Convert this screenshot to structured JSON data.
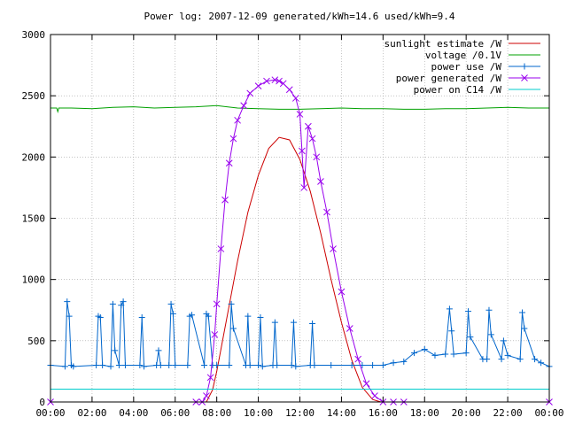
{
  "chart_data": {
    "type": "line",
    "title": "Power log: 2007-12-09 generated/kWh=14.6 used/kWh=9.4",
    "xlabel": "",
    "ylabel": "",
    "xlim": [
      0,
      24
    ],
    "ylim": [
      0,
      3000
    ],
    "grid": true,
    "legend_position": "top-right",
    "x_ticks": [
      {
        "value": 0,
        "label": "00:00"
      },
      {
        "value": 2,
        "label": "02:00"
      },
      {
        "value": 4,
        "label": "04:00"
      },
      {
        "value": 6,
        "label": "06:00"
      },
      {
        "value": 8,
        "label": "08:00"
      },
      {
        "value": 10,
        "label": "10:00"
      },
      {
        "value": 12,
        "label": "12:00"
      },
      {
        "value": 14,
        "label": "14:00"
      },
      {
        "value": 16,
        "label": "16:00"
      },
      {
        "value": 18,
        "label": "18:00"
      },
      {
        "value": 20,
        "label": "20:00"
      },
      {
        "value": 22,
        "label": "22:00"
      },
      {
        "value": 24,
        "label": "00:00"
      }
    ],
    "y_ticks": [
      0,
      500,
      1000,
      1500,
      2000,
      2500,
      3000
    ],
    "series": [
      {
        "name": "sunlight estimate /W",
        "color": "#cc0000",
        "marker": "none",
        "x": [
          7.5,
          7.8,
          8.0,
          8.5,
          9.0,
          9.5,
          10.0,
          10.5,
          11.0,
          11.5,
          12.0,
          12.5,
          13.0,
          13.5,
          14.0,
          14.5,
          15.0,
          15.5,
          15.9
        ],
        "y": [
          0,
          100,
          250,
          700,
          1150,
          1550,
          1850,
          2070,
          2160,
          2140,
          1980,
          1720,
          1380,
          1000,
          650,
          340,
          120,
          20,
          0
        ]
      },
      {
        "name": "voltage /0.1V",
        "color": "#00a000",
        "marker": "none",
        "x": [
          0,
          0.3,
          0.35,
          0.4,
          1,
          2,
          3,
          4,
          5,
          6,
          7,
          8,
          9,
          10,
          11,
          12,
          13,
          14,
          15,
          16,
          17,
          18,
          19,
          20,
          21,
          22,
          23,
          24
        ],
        "y": [
          2400,
          2400,
          2370,
          2400,
          2400,
          2395,
          2405,
          2410,
          2400,
          2405,
          2410,
          2420,
          2400,
          2395,
          2390,
          2390,
          2395,
          2400,
          2395,
          2395,
          2390,
          2390,
          2395,
          2395,
          2400,
          2405,
          2400,
          2400
        ]
      },
      {
        "name": "power use /W",
        "color": "#0066cc",
        "marker": "plus",
        "x": [
          0,
          0.7,
          0.8,
          0.9,
          1.0,
          1.1,
          2.2,
          2.3,
          2.4,
          2.5,
          2.9,
          3.0,
          3.1,
          3.3,
          3.4,
          3.5,
          3.6,
          4.3,
          4.4,
          4.5,
          5.1,
          5.2,
          5.3,
          5.7,
          5.8,
          5.9,
          6.0,
          6.6,
          6.7,
          6.8,
          7.4,
          7.5,
          7.6,
          7.8,
          8.0,
          8.6,
          8.7,
          8.8,
          9.4,
          9.5,
          9.6,
          10.0,
          10.1,
          10.2,
          10.7,
          10.8,
          10.9,
          11.6,
          11.7,
          11.8,
          12.5,
          12.6,
          12.7,
          13.5,
          14.5,
          15.0,
          15.5,
          16.0,
          16.5,
          17.0,
          17.5,
          18.0,
          18.5,
          19.0,
          19.2,
          19.3,
          19.4,
          20.0,
          20.1,
          20.2,
          20.8,
          21.0,
          21.1,
          21.2,
          21.7,
          21.8,
          22.0,
          22.6,
          22.7,
          22.8,
          23.3,
          23.6,
          24.0
        ],
        "y": [
          300,
          290,
          820,
          700,
          300,
          290,
          300,
          700,
          690,
          300,
          290,
          800,
          420,
          300,
          790,
          820,
          300,
          300,
          690,
          290,
          300,
          420,
          300,
          300,
          800,
          720,
          300,
          300,
          700,
          710,
          300,
          720,
          700,
          300,
          300,
          300,
          800,
          600,
          300,
          700,
          300,
          300,
          690,
          290,
          300,
          650,
          300,
          300,
          650,
          290,
          300,
          640,
          300,
          300,
          300,
          300,
          300,
          300,
          320,
          330,
          400,
          430,
          380,
          390,
          760,
          580,
          390,
          400,
          740,
          530,
          350,
          350,
          750,
          550,
          350,
          500,
          380,
          350,
          730,
          600,
          350,
          320,
          290
        ]
      },
      {
        "name": "power generated /W",
        "color": "#9900ee",
        "marker": "x",
        "x": [
          0,
          7.0,
          7.3,
          7.5,
          7.7,
          7.9,
          8.0,
          8.2,
          8.4,
          8.6,
          8.8,
          9.0,
          9.3,
          9.6,
          10.0,
          10.4,
          10.8,
          11.0,
          11.2,
          11.5,
          11.8,
          12.0,
          12.1,
          12.2,
          12.4,
          12.6,
          12.8,
          13.0,
          13.3,
          13.6,
          14.0,
          14.4,
          14.8,
          15.2,
          15.6,
          16.0,
          16.5,
          17.0,
          24.0
        ],
        "y": [
          0,
          0,
          0,
          50,
          200,
          550,
          800,
          1250,
          1650,
          1950,
          2150,
          2300,
          2420,
          2520,
          2580,
          2620,
          2630,
          2620,
          2600,
          2550,
          2480,
          2350,
          2050,
          1750,
          2250,
          2150,
          2000,
          1800,
          1550,
          1250,
          900,
          600,
          350,
          150,
          50,
          0,
          0,
          0,
          0
        ]
      },
      {
        "name": "power on C14 /W",
        "color": "#00cccc",
        "marker": "none",
        "x": [
          0,
          4,
          8,
          12,
          16,
          20,
          24
        ],
        "y": [
          105,
          105,
          105,
          105,
          105,
          105,
          105
        ]
      }
    ]
  }
}
